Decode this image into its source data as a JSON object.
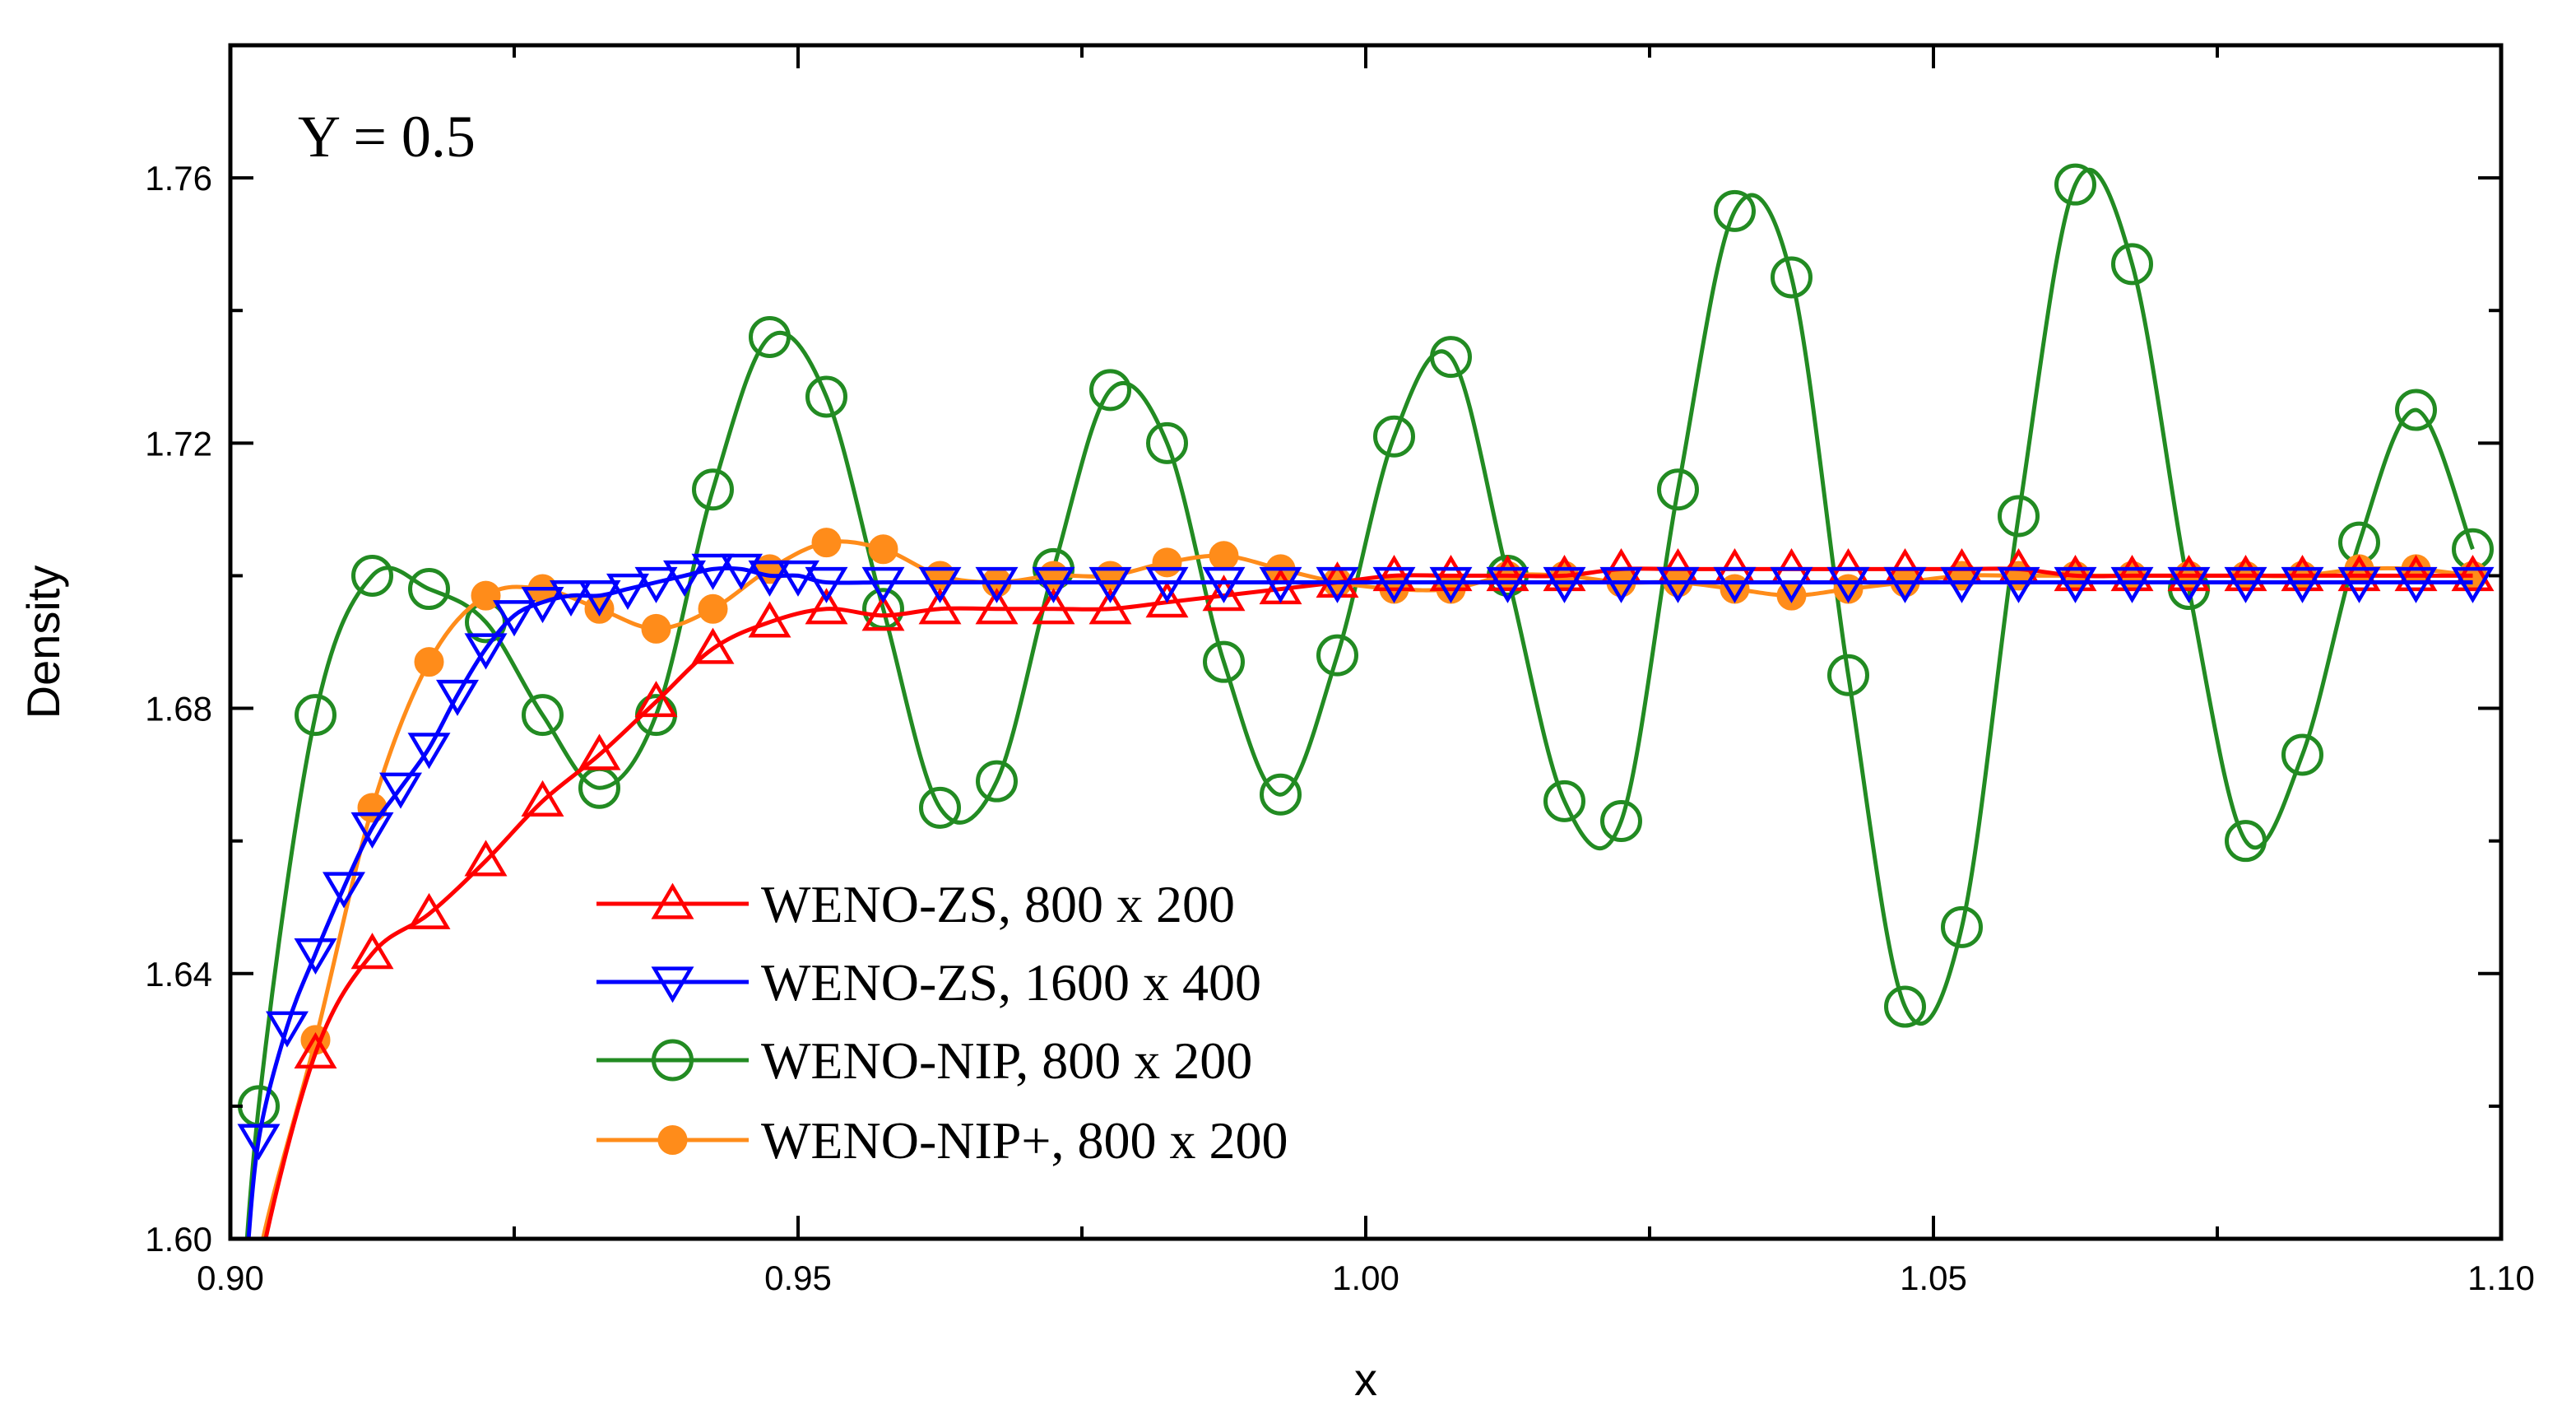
{
  "chart_data": {
    "type": "line",
    "title": "",
    "annotation": "Y = 0.5",
    "xlabel": "x",
    "ylabel": "Density",
    "xlim": [
      0.9,
      1.1
    ],
    "ylim": [
      1.6,
      1.78
    ],
    "xticks": [
      0.9,
      0.95,
      1.0,
      1.05,
      1.1
    ],
    "xtick_labels": [
      "0.90",
      "0.95",
      "1.00",
      "1.05",
      "1.10"
    ],
    "yticks": [
      1.6,
      1.64,
      1.68,
      1.72,
      1.76
    ],
    "ytick_labels": [
      "1.60",
      "1.64",
      "1.68",
      "1.72",
      "1.76"
    ],
    "grid": false,
    "legend_position": "lower-center",
    "series": [
      {
        "name": "WENO-ZS, 800 x 200",
        "color": "#ff0000",
        "marker": "triangle-up",
        "x": [
          0.9025,
          0.9075,
          0.9125,
          0.9175,
          0.9225,
          0.9275,
          0.9325,
          0.9375,
          0.9425,
          0.9475,
          0.9525,
          0.9575,
          0.9625,
          0.9675,
          0.9725,
          0.9775,
          0.9825,
          0.9875,
          0.9925,
          0.9975,
          1.0025,
          1.0075,
          1.0125,
          1.0175,
          1.0225,
          1.0275,
          1.0325,
          1.0375,
          1.0425,
          1.0475,
          1.0525,
          1.0575,
          1.0625,
          1.0675,
          1.0725,
          1.0775,
          1.0825,
          1.0875,
          1.0925,
          1.0975
        ],
        "y": [
          1.595,
          1.628,
          1.643,
          1.649,
          1.657,
          1.666,
          1.673,
          1.681,
          1.689,
          1.693,
          1.695,
          1.694,
          1.695,
          1.695,
          1.695,
          1.695,
          1.696,
          1.697,
          1.698,
          1.699,
          1.7,
          1.7,
          1.7,
          1.7,
          1.701,
          1.701,
          1.701,
          1.701,
          1.701,
          1.701,
          1.701,
          1.701,
          1.7,
          1.7,
          1.7,
          1.7,
          1.7,
          1.7,
          1.7,
          1.7
        ]
      },
      {
        "name": "WENO-ZS, 1600 x 400",
        "color": "#0000ff",
        "marker": "triangle-down",
        "x": [
          0.9025,
          0.905,
          0.9075,
          0.91,
          0.9125,
          0.915,
          0.9175,
          0.92,
          0.9225,
          0.925,
          0.9275,
          0.93,
          0.9325,
          0.935,
          0.9375,
          0.94,
          0.9425,
          0.945,
          0.9475,
          0.95,
          0.9525,
          0.9575,
          0.9625,
          0.9675,
          0.9725,
          0.9775,
          0.9825,
          0.9875,
          0.9925,
          0.9975,
          1.0025,
          1.0075,
          1.0125,
          1.0175,
          1.0225,
          1.0275,
          1.0325,
          1.0375,
          1.0425,
          1.0475,
          1.0525,
          1.0575,
          1.0625,
          1.0675,
          1.0725,
          1.0775,
          1.0825,
          1.0875,
          1.0925,
          1.0975
        ],
        "y": [
          1.615,
          1.632,
          1.643,
          1.653,
          1.662,
          1.668,
          1.674,
          1.682,
          1.689,
          1.694,
          1.696,
          1.697,
          1.697,
          1.698,
          1.699,
          1.7,
          1.701,
          1.701,
          1.7,
          1.7,
          1.699,
          1.699,
          1.699,
          1.699,
          1.699,
          1.699,
          1.699,
          1.699,
          1.699,
          1.699,
          1.699,
          1.699,
          1.699,
          1.699,
          1.699,
          1.699,
          1.699,
          1.699,
          1.699,
          1.699,
          1.699,
          1.699,
          1.699,
          1.699,
          1.699,
          1.699,
          1.699,
          1.699,
          1.699,
          1.699
        ]
      },
      {
        "name": "WENO-NIP, 800 x 200",
        "color": "#228b22",
        "marker": "circle-open",
        "x": [
          0.9025,
          0.9075,
          0.9125,
          0.9175,
          0.9225,
          0.9275,
          0.9325,
          0.9375,
          0.9425,
          0.9475,
          0.9525,
          0.9575,
          0.9625,
          0.9675,
          0.9725,
          0.9775,
          0.9825,
          0.9875,
          0.9925,
          0.9975,
          1.0025,
          1.0075,
          1.0125,
          1.0175,
          1.0225,
          1.0275,
          1.0325,
          1.0375,
          1.0425,
          1.0475,
          1.0525,
          1.0575,
          1.0625,
          1.0675,
          1.0725,
          1.0775,
          1.0825,
          1.0875,
          1.0925,
          1.0975
        ],
        "y": [
          1.62,
          1.679,
          1.7,
          1.698,
          1.693,
          1.679,
          1.668,
          1.679,
          1.713,
          1.736,
          1.727,
          1.695,
          1.665,
          1.669,
          1.701,
          1.728,
          1.72,
          1.687,
          1.667,
          1.688,
          1.721,
          1.733,
          1.7,
          1.666,
          1.663,
          1.713,
          1.755,
          1.745,
          1.685,
          1.635,
          1.647,
          1.709,
          1.759,
          1.747,
          1.698,
          1.66,
          1.673,
          1.705,
          1.725,
          1.704
        ]
      },
      {
        "name": "WENO-NIP+, 800 x 200",
        "color": "#ff8c1a",
        "marker": "circle-filled",
        "x": [
          0.9025,
          0.9075,
          0.9125,
          0.9175,
          0.9225,
          0.9275,
          0.9325,
          0.9375,
          0.9425,
          0.9475,
          0.9525,
          0.9575,
          0.9625,
          0.9675,
          0.9725,
          0.9775,
          0.9825,
          0.9875,
          0.9925,
          0.9975,
          1.0025,
          1.0075,
          1.0125,
          1.0175,
          1.0225,
          1.0275,
          1.0325,
          1.0375,
          1.0425,
          1.0475,
          1.0525,
          1.0575,
          1.0625,
          1.0675,
          1.0725,
          1.0775,
          1.0825,
          1.0875,
          1.0925,
          1.0975
        ],
        "y": [
          1.597,
          1.63,
          1.665,
          1.687,
          1.697,
          1.698,
          1.695,
          1.692,
          1.695,
          1.701,
          1.705,
          1.704,
          1.7,
          1.699,
          1.7,
          1.7,
          1.702,
          1.703,
          1.701,
          1.699,
          1.698,
          1.698,
          1.7,
          1.7,
          1.699,
          1.699,
          1.698,
          1.697,
          1.698,
          1.699,
          1.7,
          1.7,
          1.7,
          1.7,
          1.7,
          1.7,
          1.7,
          1.701,
          1.701,
          1.7
        ]
      }
    ]
  }
}
